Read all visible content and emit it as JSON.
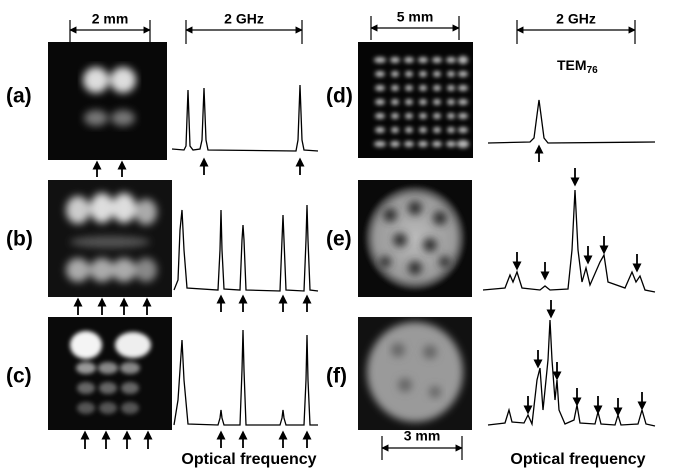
{
  "panels": {
    "a": "(a)",
    "b": "(b)",
    "c": "(c)",
    "d": "(d)",
    "e": "(e)",
    "f": "(f)"
  },
  "scale_bars": {
    "left_image": "2 mm",
    "left_spectrum": "2 GHz",
    "right_image_top": "5 mm",
    "right_spectrum": "2 GHz",
    "right_image_bottom": "3 mm"
  },
  "mode_label": {
    "base": "TEM",
    "subscript": "76"
  },
  "x_axis_labels": {
    "left": "Optical frequency",
    "right": "Optical frequency"
  }
}
